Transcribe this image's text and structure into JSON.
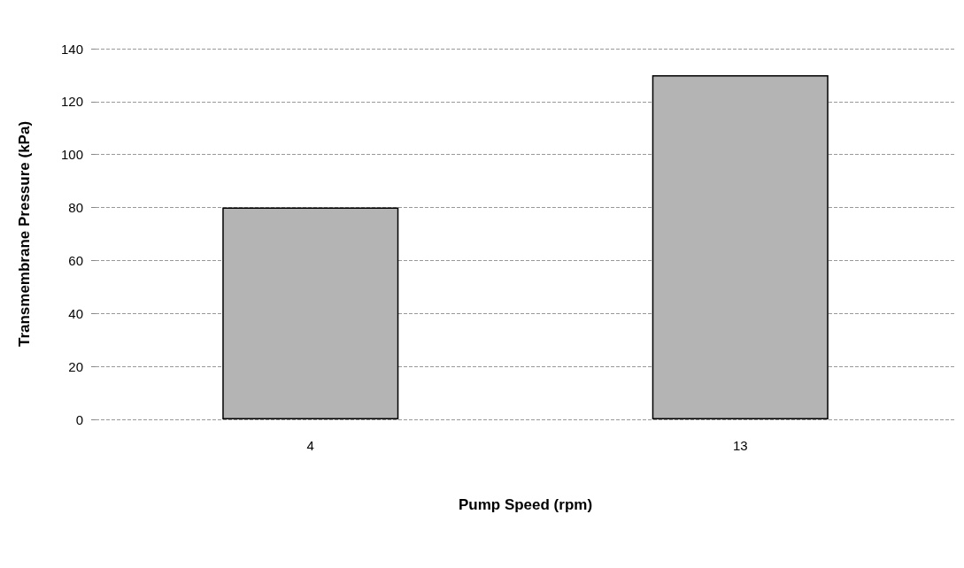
{
  "chart_data": {
    "type": "bar",
    "xlabel": "Pump Speed (rpm)",
    "ylabel": "Transmembrane Pressure (kPa)",
    "categories": [
      "4",
      "13"
    ],
    "values": [
      80,
      130
    ],
    "color": "#b4b4b4",
    "ylim": [
      0,
      140
    ],
    "yticks": [
      0,
      20,
      40,
      60,
      80,
      100,
      120,
      140
    ],
    "grid": "y"
  }
}
